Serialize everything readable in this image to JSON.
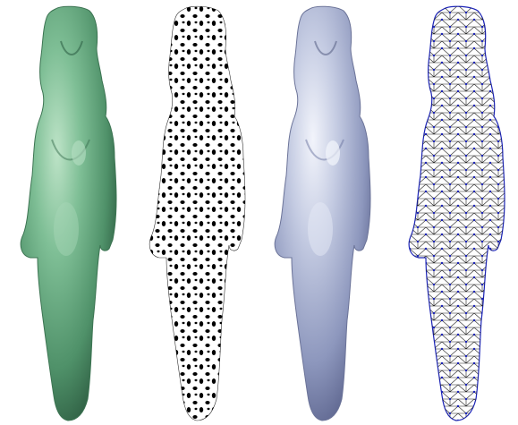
{
  "figure": {
    "panels": [
      {
        "id": "green-shaded",
        "render_style": "smooth shading",
        "color": "#5fa57c"
      },
      {
        "id": "texture-dots",
        "render_style": "ellipse texture",
        "color": "#000000"
      },
      {
        "id": "blue-shaded",
        "render_style": "smooth shading",
        "color": "#a9b2d0"
      },
      {
        "id": "wireframe",
        "render_style": "triangle mesh",
        "color": "#1c24b8"
      }
    ]
  }
}
